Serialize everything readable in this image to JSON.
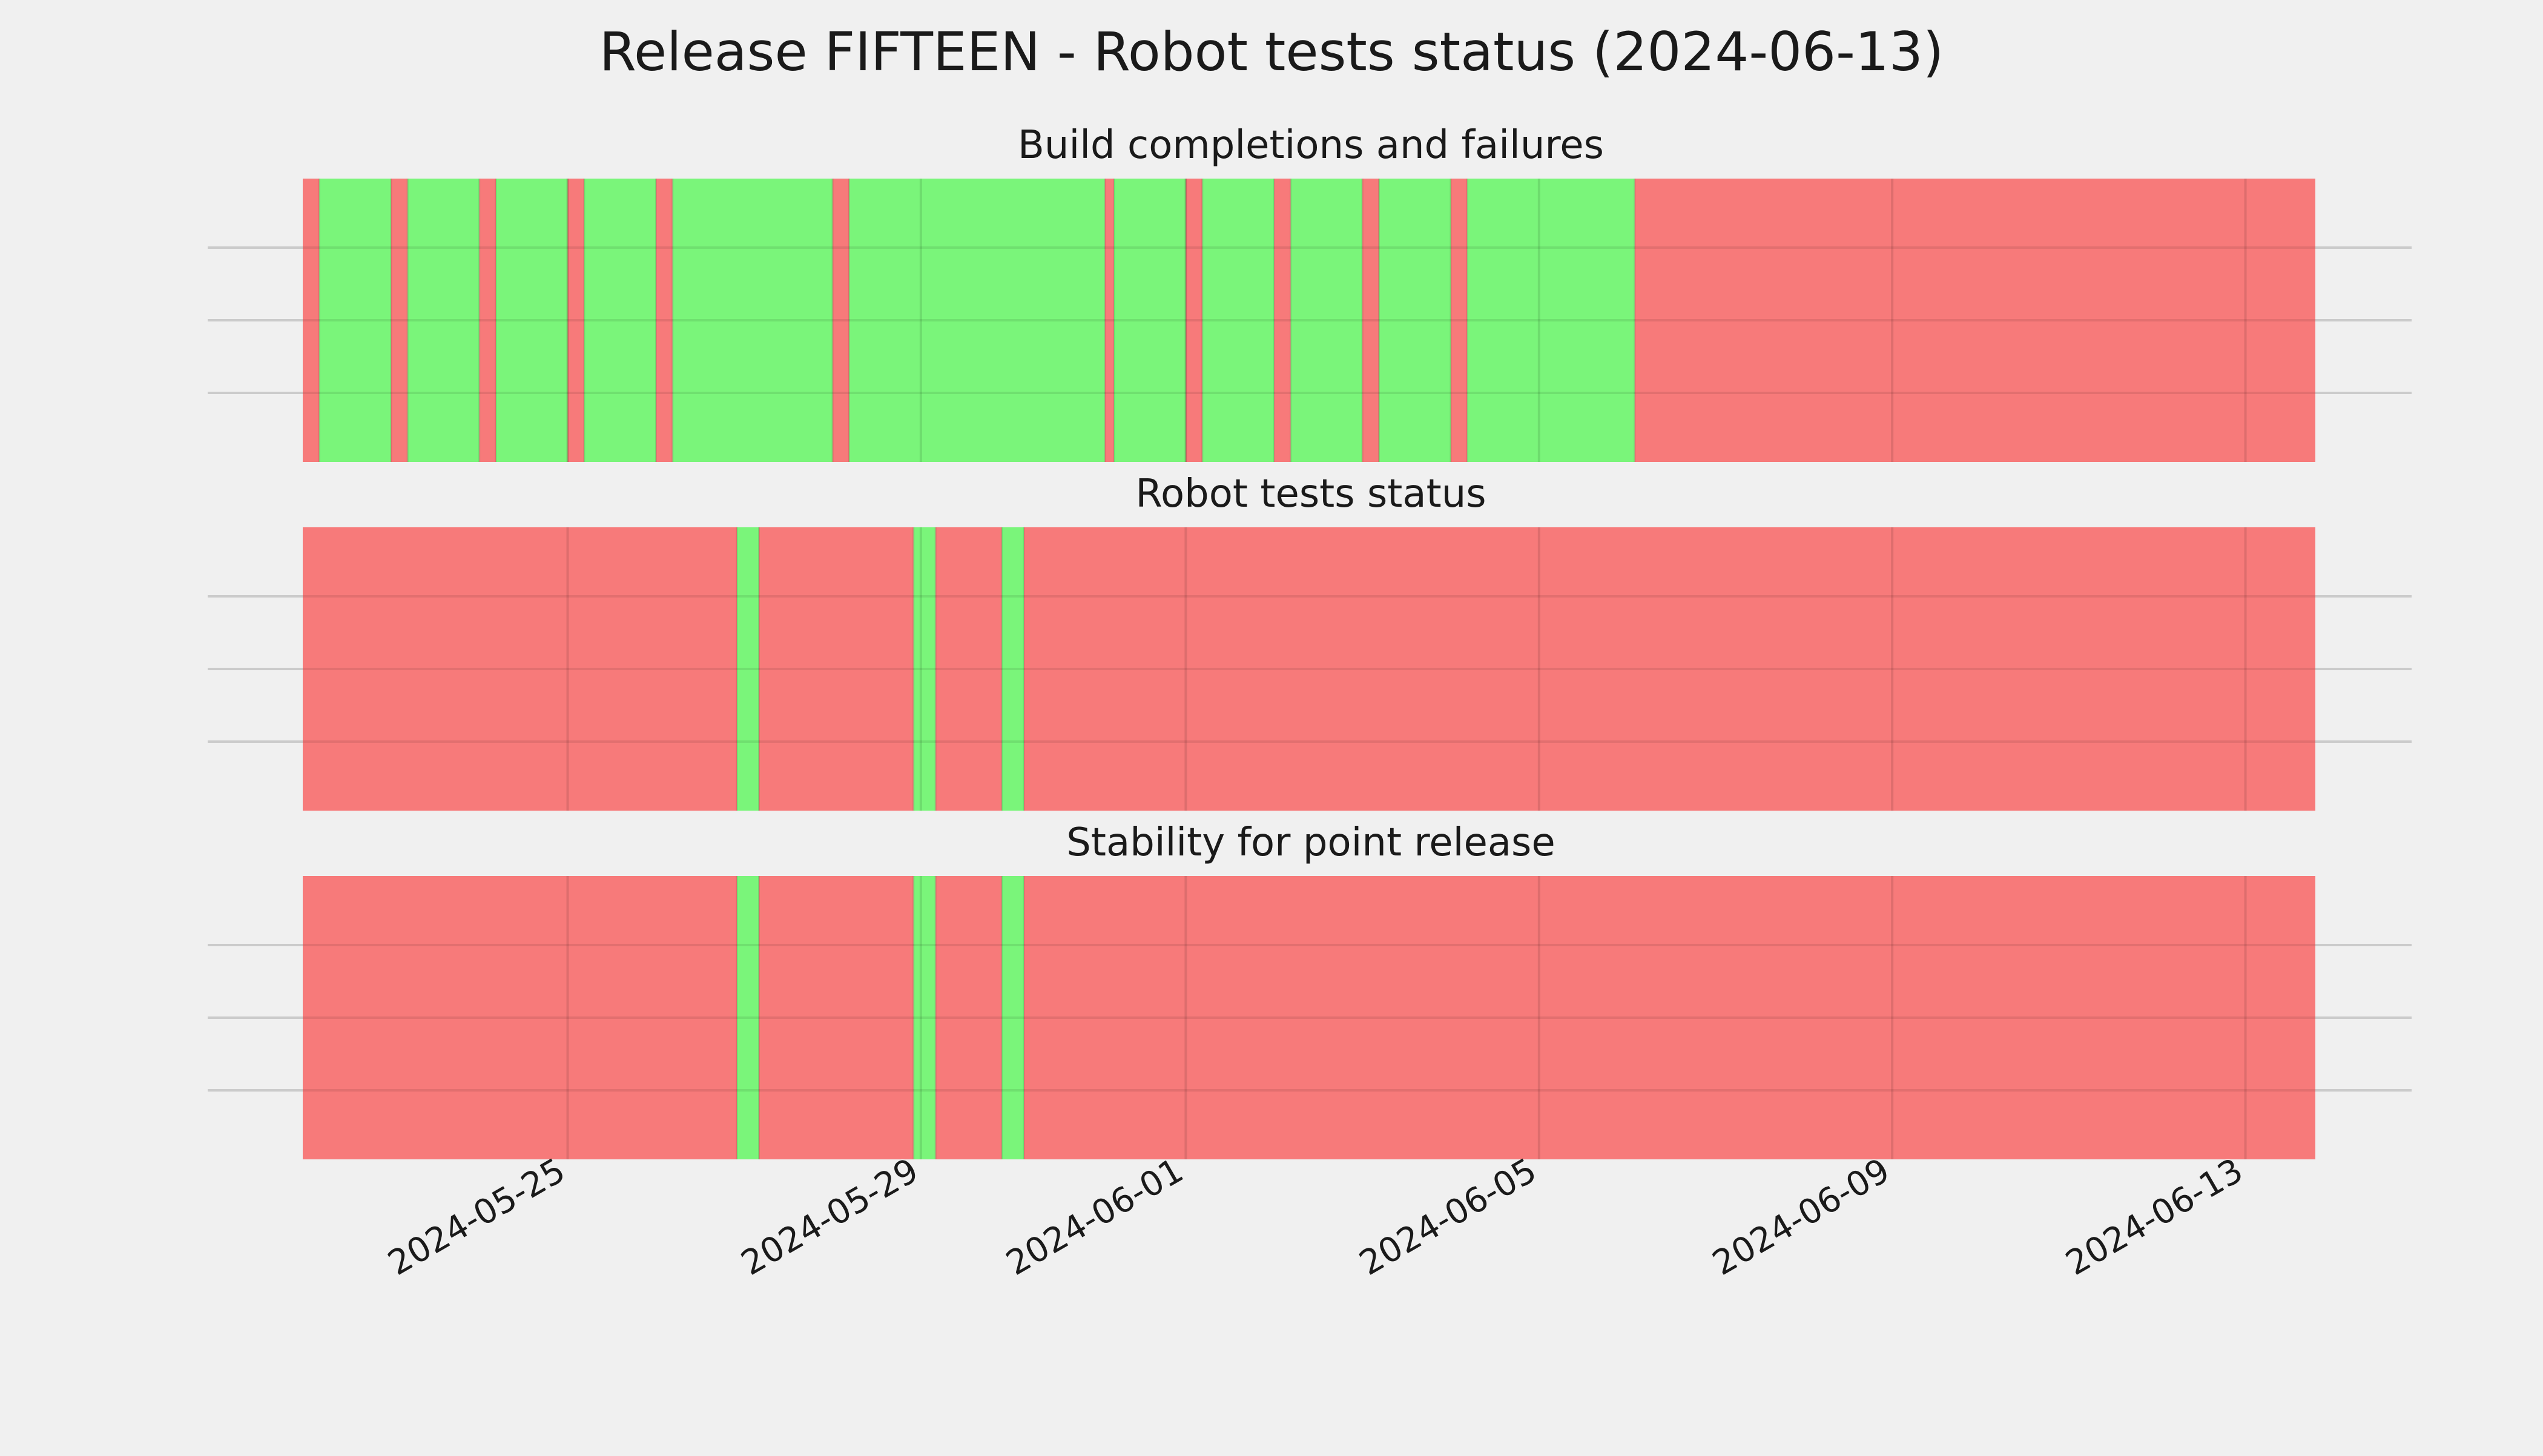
{
  "chart_data": {
    "type": "timeline",
    "title": "Release FIFTEEN - Robot tests status (2024-06-13)",
    "x_range": [
      "2024-05-22T00:00",
      "2024-06-13T19:00"
    ],
    "x_ticks": [
      "2024-05-25",
      "2024-05-29",
      "2024-06-01",
      "2024-06-05",
      "2024-06-09",
      "2024-06-13"
    ],
    "grid": true,
    "colors": {
      "pass": "#77f577",
      "fail": "#f77777",
      "background": "#f0f0f0",
      "grid": "#cbcbcb"
    },
    "panels": [
      {
        "title": "Build completions and failures",
        "segments": [
          {
            "start": "2024-05-22T00:00",
            "end": "2024-05-22T04:30",
            "status": "fail"
          },
          {
            "start": "2024-05-22T04:30",
            "end": "2024-05-23T00:00",
            "status": "pass"
          },
          {
            "start": "2024-05-23T00:00",
            "end": "2024-05-23T04:30",
            "status": "fail"
          },
          {
            "start": "2024-05-23T04:30",
            "end": "2024-05-24T00:00",
            "status": "pass"
          },
          {
            "start": "2024-05-24T00:00",
            "end": "2024-05-24T04:30",
            "status": "fail"
          },
          {
            "start": "2024-05-24T04:30",
            "end": "2024-05-25T00:00",
            "status": "pass"
          },
          {
            "start": "2024-05-25T00:00",
            "end": "2024-05-25T04:30",
            "status": "fail"
          },
          {
            "start": "2024-05-25T04:30",
            "end": "2024-05-26T00:00",
            "status": "pass"
          },
          {
            "start": "2024-05-26T00:00",
            "end": "2024-05-26T04:30",
            "status": "fail"
          },
          {
            "start": "2024-05-26T04:30",
            "end": "2024-05-28T00:00",
            "status": "pass"
          },
          {
            "start": "2024-05-28T00:00",
            "end": "2024-05-28T04:30",
            "status": "fail"
          },
          {
            "start": "2024-05-28T04:30",
            "end": "2024-05-31T02:00",
            "status": "pass"
          },
          {
            "start": "2024-05-31T02:00",
            "end": "2024-05-31T04:30",
            "status": "fail"
          },
          {
            "start": "2024-05-31T04:30",
            "end": "2024-06-01T00:00",
            "status": "pass"
          },
          {
            "start": "2024-06-01T00:00",
            "end": "2024-06-01T04:30",
            "status": "fail"
          },
          {
            "start": "2024-06-01T04:30",
            "end": "2024-06-02T00:00",
            "status": "pass"
          },
          {
            "start": "2024-06-02T00:00",
            "end": "2024-06-02T04:30",
            "status": "fail"
          },
          {
            "start": "2024-06-02T04:30",
            "end": "2024-06-03T00:00",
            "status": "pass"
          },
          {
            "start": "2024-06-03T00:00",
            "end": "2024-06-03T04:30",
            "status": "fail"
          },
          {
            "start": "2024-06-03T04:30",
            "end": "2024-06-04T00:00",
            "status": "pass"
          },
          {
            "start": "2024-06-04T00:00",
            "end": "2024-06-04T04:30",
            "status": "fail"
          },
          {
            "start": "2024-06-04T04:30",
            "end": "2024-06-06T02:00",
            "status": "pass"
          },
          {
            "start": "2024-06-06T02:00",
            "end": "2024-06-13T19:00",
            "status": "fail"
          }
        ]
      },
      {
        "title": "Robot tests status",
        "segments": [
          {
            "start": "2024-05-22T00:00",
            "end": "2024-05-26T22:00",
            "status": "fail"
          },
          {
            "start": "2024-05-26T22:00",
            "end": "2024-05-27T04:00",
            "status": "pass"
          },
          {
            "start": "2024-05-27T04:00",
            "end": "2024-05-28T22:00",
            "status": "fail"
          },
          {
            "start": "2024-05-28T22:00",
            "end": "2024-05-29T04:00",
            "status": "pass"
          },
          {
            "start": "2024-05-29T04:00",
            "end": "2024-05-29T22:00",
            "status": "fail"
          },
          {
            "start": "2024-05-29T22:00",
            "end": "2024-05-30T04:00",
            "status": "pass"
          },
          {
            "start": "2024-05-30T04:00",
            "end": "2024-06-13T19:00",
            "status": "fail"
          }
        ]
      },
      {
        "title": "Stability for point release",
        "segments": [
          {
            "start": "2024-05-22T00:00",
            "end": "2024-05-26T22:00",
            "status": "fail"
          },
          {
            "start": "2024-05-26T22:00",
            "end": "2024-05-27T04:00",
            "status": "pass"
          },
          {
            "start": "2024-05-27T04:00",
            "end": "2024-05-28T22:00",
            "status": "fail"
          },
          {
            "start": "2024-05-28T22:00",
            "end": "2024-05-29T04:00",
            "status": "pass"
          },
          {
            "start": "2024-05-29T04:00",
            "end": "2024-05-29T22:00",
            "status": "fail"
          },
          {
            "start": "2024-05-29T22:00",
            "end": "2024-05-30T04:00",
            "status": "pass"
          },
          {
            "start": "2024-05-30T04:00",
            "end": "2024-06-13T19:00",
            "status": "fail"
          }
        ]
      }
    ]
  }
}
